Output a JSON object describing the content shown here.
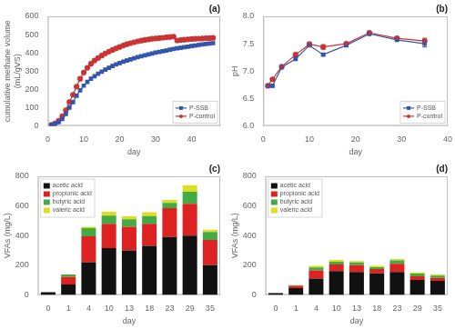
{
  "chart_data": [
    {
      "type": "line",
      "title": "(a)",
      "x_label": "day",
      "y_label": "cumulative methane volume\n(mL/gVS)",
      "x": [
        1,
        2,
        3,
        4,
        5,
        6,
        7,
        8,
        9,
        10,
        11,
        12,
        13,
        14,
        15,
        16,
        17,
        18,
        19,
        20,
        21,
        22,
        23,
        24,
        25,
        26,
        27,
        28,
        29,
        30,
        31,
        32,
        33,
        34,
        35,
        36,
        37,
        38,
        39,
        40,
        41,
        42,
        43,
        44,
        45,
        46
      ],
      "series": [
        {
          "name": "P-SSB",
          "color": "#3355aa",
          "marker": "square",
          "values": [
            5,
            10,
            20,
            38,
            65,
            100,
            130,
            165,
            195,
            220,
            240,
            258,
            272,
            285,
            297,
            308,
            318,
            328,
            336,
            344,
            352,
            358,
            364,
            370,
            376,
            381,
            386,
            391,
            396,
            401,
            405,
            409,
            413,
            417,
            421,
            425,
            428,
            431,
            434,
            437,
            440,
            443,
            446,
            449,
            451,
            453
          ]
        },
        {
          "name": "P-control",
          "color": "#cc3333",
          "marker": "circle",
          "values": [
            5,
            13,
            28,
            52,
            85,
            130,
            170,
            215,
            258,
            292,
            318,
            340,
            358,
            372,
            385,
            397,
            407,
            416,
            424,
            432,
            440,
            447,
            453,
            458,
            463,
            467,
            471,
            474,
            477,
            479,
            481,
            483,
            485,
            487,
            489,
            468,
            470,
            472,
            474,
            476,
            477,
            478,
            479,
            480,
            481,
            482
          ]
        }
      ],
      "xlim": [
        0,
        48
      ],
      "ylim": [
        0,
        600
      ],
      "xticks": [
        0,
        10,
        20,
        30,
        40
      ],
      "yticks": [
        0,
        100,
        200,
        300,
        400,
        500,
        600
      ],
      "grid": false,
      "legend": "lower right"
    },
    {
      "type": "line",
      "title": "(b)",
      "x_label": "day",
      "y_label": "pH",
      "x": [
        1,
        2,
        4,
        7,
        10,
        13,
        18,
        23,
        29,
        35
      ],
      "series": [
        {
          "name": "P-SSB",
          "color": "#3355aa",
          "marker": "square",
          "values": [
            6.73,
            6.73,
            7.07,
            7.22,
            7.47,
            7.3,
            7.47,
            7.68,
            7.57,
            7.5
          ],
          "errors": [
            0.02,
            0.02,
            0.02,
            0.02,
            0.02,
            0.02,
            0.02,
            0.02,
            0.02,
            0.06
          ]
        },
        {
          "name": "P-control",
          "color": "#cc3333",
          "marker": "circle",
          "values": [
            6.73,
            6.85,
            7.08,
            7.3,
            7.49,
            7.44,
            7.5,
            7.7,
            7.6,
            7.55
          ],
          "errors": [
            0.02,
            0.02,
            0.02,
            0.02,
            0.04,
            0.04,
            0.02,
            0.02,
            0.02,
            0.05
          ]
        }
      ],
      "xlim": [
        0,
        40
      ],
      "ylim": [
        6.0,
        8.0
      ],
      "xticks": [
        0,
        10,
        20,
        30,
        40
      ],
      "yticks": [
        {
          "value": 6.0,
          "label": "6.0"
        },
        {
          "value": 6.5,
          "label": "6.5"
        },
        {
          "value": 7.0,
          "label": "7.0"
        },
        {
          "value": 7.5,
          "label": "7.5"
        },
        {
          "value": 8.0,
          "label": "8.0"
        }
      ],
      "grid": false,
      "legend": "lower right"
    },
    {
      "type": "bar",
      "stacked": true,
      "title": "(c)",
      "x_label": "day",
      "y_label": "VFAs (mg/L)",
      "categories": [
        "0",
        "1",
        "4",
        "10",
        "13",
        "18",
        "23",
        "29",
        "35"
      ],
      "series": [
        {
          "name": "acetic acid",
          "color": "#111111",
          "values": [
            18,
            70,
            220,
            315,
            300,
            330,
            390,
            400,
            200
          ]
        },
        {
          "name": "propionic acid",
          "color": "#dd2222",
          "values": [
            0,
            50,
            175,
            165,
            160,
            150,
            195,
            215,
            170
          ]
        },
        {
          "name": "butyric acid",
          "color": "#44aa44",
          "values": [
            0,
            18,
            55,
            55,
            50,
            52,
            35,
            80,
            55
          ]
        },
        {
          "name": "valeric acid",
          "color": "#dddd22",
          "values": [
            0,
            0,
            10,
            25,
            20,
            25,
            20,
            45,
            15
          ]
        }
      ],
      "ylim": [
        0,
        800
      ],
      "yticks": [
        0,
        200,
        400,
        600,
        800
      ],
      "grid": false,
      "legend": "upper left"
    },
    {
      "type": "bar",
      "stacked": true,
      "title": "(d)",
      "x_label": "day",
      "y_label": "VFAs (mg/L)",
      "categories": [
        "0",
        "1",
        "4",
        "10",
        "13",
        "18",
        "23",
        "29",
        "35"
      ],
      "series": [
        {
          "name": "acetic acid",
          "color": "#111111",
          "values": [
            12,
            45,
            110,
            160,
            155,
            145,
            155,
            100,
            95
          ]
        },
        {
          "name": "propionic acid",
          "color": "#dd2222",
          "values": [
            0,
            15,
            55,
            45,
            45,
            30,
            55,
            25,
            20
          ]
        },
        {
          "name": "butyric acid",
          "color": "#44aa44",
          "values": [
            0,
            5,
            20,
            18,
            18,
            12,
            22,
            18,
            15
          ]
        },
        {
          "name": "valeric acid",
          "color": "#dddd22",
          "values": [
            0,
            0,
            10,
            12,
            10,
            8,
            10,
            8,
            8
          ]
        }
      ],
      "ylim": [
        0,
        800
      ],
      "yticks": [
        0,
        200,
        400,
        600,
        800
      ],
      "grid": false,
      "legend": "upper left"
    }
  ]
}
